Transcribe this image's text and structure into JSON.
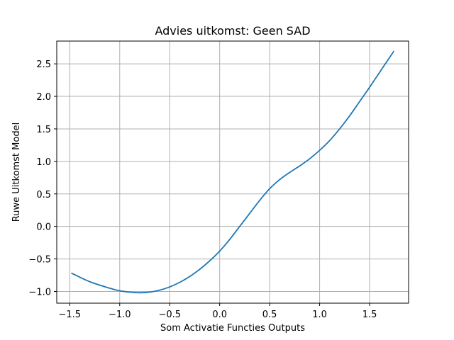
{
  "chart_data": {
    "type": "line",
    "title": "Advies uitkomst: Geen SAD",
    "xlabel": "Som Activatie Functies Outputs",
    "ylabel": "Ruwe Uitkomst Model",
    "xlim": [
      -1.63,
      1.89
    ],
    "ylim": [
      -1.18,
      2.85
    ],
    "grid": true,
    "x_ticks": [
      -1.5,
      -1.0,
      -0.5,
      0.0,
      0.5,
      1.0,
      1.5
    ],
    "x_tick_labels": [
      "−1.5",
      "−1.0",
      "−0.5",
      "0.0",
      "0.5",
      "1.0",
      "1.5"
    ],
    "y_ticks": [
      -1.0,
      -0.5,
      0.0,
      0.5,
      1.0,
      1.5,
      2.0,
      2.5
    ],
    "y_tick_labels": [
      "−1.0",
      "−0.5",
      "0.0",
      "0.5",
      "1.0",
      "1.5",
      "2.0",
      "2.5"
    ],
    "series": [
      {
        "color": "#1f77b4",
        "x": [
          -1.48,
          -1.3,
          -1.1,
          -1.0,
          -0.9,
          -0.8,
          -0.7,
          -0.6,
          -0.5,
          -0.4,
          -0.3,
          -0.2,
          -0.1,
          0.0,
          0.1,
          0.2,
          0.3,
          0.4,
          0.5,
          0.6,
          0.7,
          0.8,
          0.9,
          1.0,
          1.1,
          1.2,
          1.3,
          1.4,
          1.5,
          1.6,
          1.74
        ],
        "y": [
          -0.72,
          -0.85,
          -0.95,
          -0.99,
          -1.01,
          -1.02,
          -1.01,
          -0.98,
          -0.93,
          -0.86,
          -0.77,
          -0.66,
          -0.53,
          -0.38,
          -0.2,
          0.0,
          0.2,
          0.4,
          0.58,
          0.72,
          0.83,
          0.93,
          1.04,
          1.17,
          1.32,
          1.5,
          1.7,
          1.92,
          2.14,
          2.37,
          2.69
        ]
      }
    ]
  }
}
